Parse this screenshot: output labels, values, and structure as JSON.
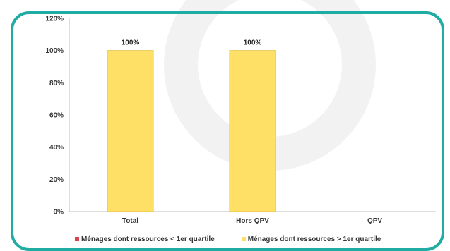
{
  "chart_data": {
    "type": "bar",
    "categories": [
      "Total",
      "Hors QPV",
      "QPV"
    ],
    "series": [
      {
        "name": "Ménages dont ressources < 1er quartile",
        "color": "#d9434f",
        "values": [
          0,
          0,
          null
        ]
      },
      {
        "name": "Ménages dont ressources > 1er quartile",
        "color": "#ffe066",
        "values": [
          100,
          100,
          null
        ]
      }
    ],
    "data_labels": [
      "100%",
      "100%",
      ""
    ],
    "ylim": [
      0,
      120
    ],
    "yticks": [
      "0%",
      "20%",
      "40%",
      "60%",
      "80%",
      "100%",
      "120%"
    ],
    "grid": false,
    "legend_position": "bottom"
  },
  "colors": {
    "frame": "#1fada3",
    "bar_fill": "#ffe066",
    "bar_stroke": "#e6c24a"
  }
}
